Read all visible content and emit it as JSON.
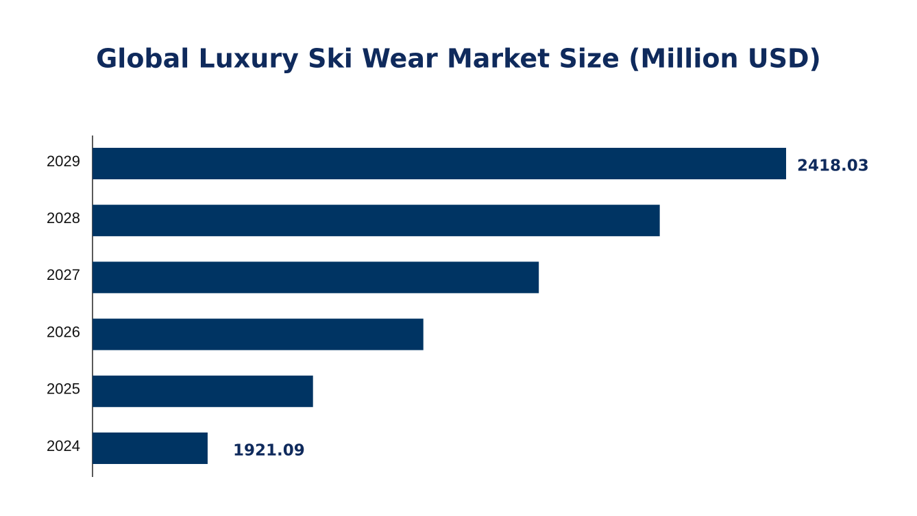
{
  "chart_data": {
    "type": "bar",
    "orientation": "horizontal",
    "title": "Global Luxury Ski Wear Market Size (Million USD)",
    "categories": [
      "2024",
      "2025",
      "2026",
      "2027",
      "2028",
      "2029"
    ],
    "values": [
      1921.09,
      2011.6,
      2106.4,
      2205.6,
      2309.5,
      2418.03
    ],
    "color": "#003463",
    "xlim": [
      1822.2,
      2418.03
    ]
  }
}
